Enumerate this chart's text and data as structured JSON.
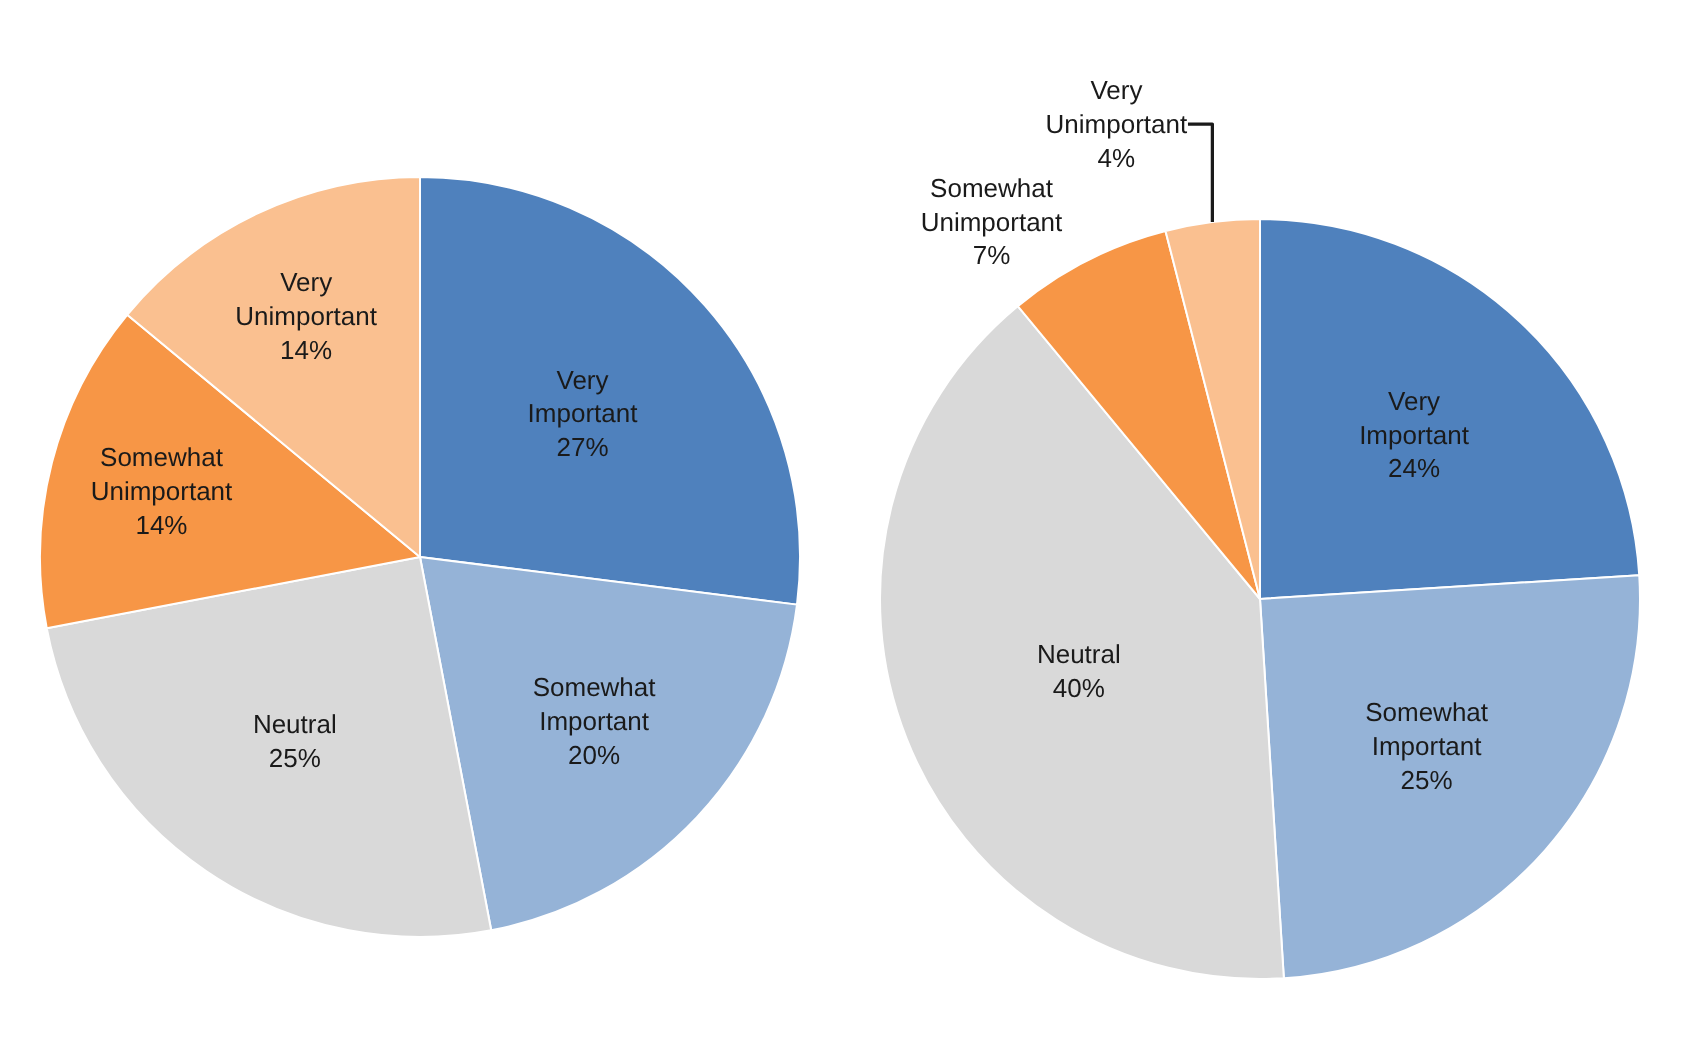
{
  "chart_data": [
    {
      "type": "pie",
      "categories": [
        "Very Important",
        "Somewhat Important",
        "Neutral",
        "Somewhat Unimportant",
        "Very Unimportant"
      ],
      "values": [
        27,
        20,
        25,
        14,
        14
      ],
      "value_labels": [
        "27%",
        "20%",
        "25%",
        "14%",
        "14%"
      ],
      "colors": [
        "#4f81bd",
        "#95b3d7",
        "#d9d9d9",
        "#f79646",
        "#fac090"
      ]
    },
    {
      "type": "pie",
      "categories": [
        "Very Important",
        "Somewhat Important",
        "Neutral",
        "Somewhat Unimportant",
        "Very Unimportant"
      ],
      "values": [
        24,
        25,
        40,
        7,
        4
      ],
      "value_labels": [
        "24%",
        "25%",
        "40%",
        "7%",
        "4%"
      ],
      "colors": [
        "#4f81bd",
        "#95b3d7",
        "#d9d9d9",
        "#f79646",
        "#fac090"
      ]
    }
  ]
}
